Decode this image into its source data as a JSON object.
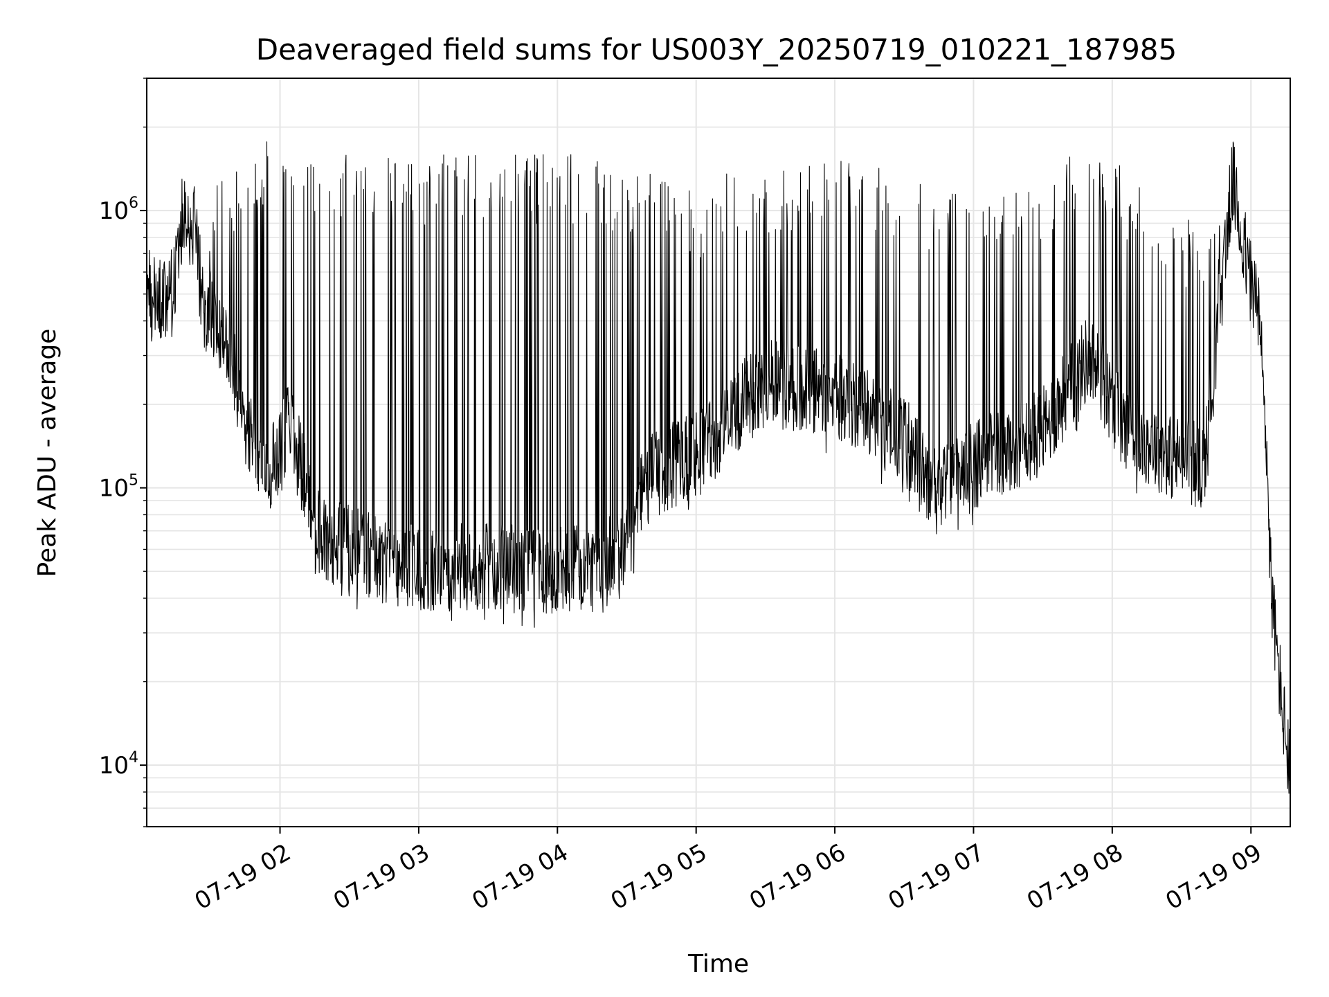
{
  "chart_data": {
    "type": "line",
    "title": "Deaveraged field sums for US003Y_20250719_010221_187985",
    "xlabel": "Time",
    "ylabel": "Peak ADU - average",
    "y_scale": "log",
    "ylim": [
      6000,
      3000000
    ],
    "x_range": [
      "2025-07-19T01:02:21",
      "2025-07-19T09:17:00"
    ],
    "x_ticks": [
      {
        "time": "2025-07-19T02:00",
        "label": "07-19 02"
      },
      {
        "time": "2025-07-19T03:00",
        "label": "07-19 03"
      },
      {
        "time": "2025-07-19T04:00",
        "label": "07-19 04"
      },
      {
        "time": "2025-07-19T05:00",
        "label": "07-19 05"
      },
      {
        "time": "2025-07-19T06:00",
        "label": "07-19 06"
      },
      {
        "time": "2025-07-19T07:00",
        "label": "07-19 07"
      },
      {
        "time": "2025-07-19T08:00",
        "label": "07-19 08"
      },
      {
        "time": "2025-07-19T09:00",
        "label": "07-19 09"
      }
    ],
    "y_ticks": [
      {
        "value": 10000,
        "base": "10",
        "exp": "4"
      },
      {
        "value": 100000,
        "base": "10",
        "exp": "5"
      },
      {
        "value": 1000000,
        "base": "10",
        "exp": "6"
      }
    ],
    "grid": true,
    "line_color": "#000000",
    "grid_color": "#e5e5e5",
    "series_profile": [
      {
        "time": "01:02",
        "baseline": 520000,
        "spike_peak": 560000
      },
      {
        "time": "01:10",
        "baseline": 480000,
        "spike_peak": 560000
      },
      {
        "time": "01:15",
        "baseline": 600000,
        "spike_peak": 640000
      },
      {
        "time": "01:18",
        "baseline": 1000000,
        "spike_peak": 1150000
      },
      {
        "time": "01:23",
        "baseline": 850000,
        "spike_peak": 1600000
      },
      {
        "time": "01:27",
        "baseline": 450000,
        "spike_peak": 600000
      },
      {
        "time": "01:33",
        "baseline": 400000,
        "spike_peak": 1400000
      },
      {
        "time": "01:38",
        "baseline": 340000,
        "spike_peak": 1400000
      },
      {
        "time": "01:45",
        "baseline": 160000,
        "spike_peak": 1700000
      },
      {
        "time": "01:55",
        "baseline": 110000,
        "spike_peak": 1800000
      },
      {
        "time": "02:05",
        "baseline": 180000,
        "spike_peak": 1800000
      },
      {
        "time": "02:15",
        "baseline": 70000,
        "spike_peak": 1600000
      },
      {
        "time": "02:30",
        "baseline": 60000,
        "spike_peak": 1600000
      },
      {
        "time": "02:45",
        "baseline": 55000,
        "spike_peak": 1700000
      },
      {
        "time": "03:00",
        "baseline": 52000,
        "spike_peak": 1600000
      },
      {
        "time": "03:30",
        "baseline": 52000,
        "spike_peak": 1600000
      },
      {
        "time": "04:00",
        "baseline": 50000,
        "spike_peak": 1600000
      },
      {
        "time": "04:20",
        "baseline": 52000,
        "spike_peak": 1600000
      },
      {
        "time": "04:30",
        "baseline": 65000,
        "spike_peak": 1300000
      },
      {
        "time": "04:40",
        "baseline": 110000,
        "spike_peak": 1400000
      },
      {
        "time": "05:00",
        "baseline": 130000,
        "spike_peak": 1200000
      },
      {
        "time": "05:20",
        "baseline": 200000,
        "spike_peak": 1500000
      },
      {
        "time": "05:30",
        "baseline": 240000,
        "spike_peak": 1400000
      },
      {
        "time": "06:00",
        "baseline": 220000,
        "spike_peak": 1600000
      },
      {
        "time": "06:30",
        "baseline": 150000,
        "spike_peak": 1400000
      },
      {
        "time": "06:45",
        "baseline": 95000,
        "spike_peak": 1200000
      },
      {
        "time": "07:00",
        "baseline": 120000,
        "spike_peak": 1200000
      },
      {
        "time": "07:30",
        "baseline": 160000,
        "spike_peak": 1200000
      },
      {
        "time": "07:50",
        "baseline": 300000,
        "spike_peak": 2000000
      },
      {
        "time": "08:05",
        "baseline": 170000,
        "spike_peak": 1400000
      },
      {
        "time": "08:25",
        "baseline": 130000,
        "spike_peak": 1000000
      },
      {
        "time": "08:40",
        "baseline": 120000,
        "spike_peak": 900000
      },
      {
        "time": "08:47",
        "baseline": 500000,
        "spike_peak": 1100000
      },
      {
        "time": "08:52",
        "baseline": 1300000,
        "spike_peak": 2300000
      },
      {
        "time": "08:56",
        "baseline": 800000,
        "spike_peak": 1200000
      },
      {
        "time": "09:03",
        "baseline": 450000,
        "spike_peak": 900000
      },
      {
        "time": "09:06",
        "baseline": 200000,
        "spike_peak": 400000
      },
      {
        "time": "09:09",
        "baseline": 40000,
        "spike_peak": 60000
      },
      {
        "time": "09:13",
        "baseline": 18000,
        "spike_peak": 22000
      },
      {
        "time": "09:17",
        "baseline": 9000,
        "spike_peak": 12000
      }
    ]
  }
}
